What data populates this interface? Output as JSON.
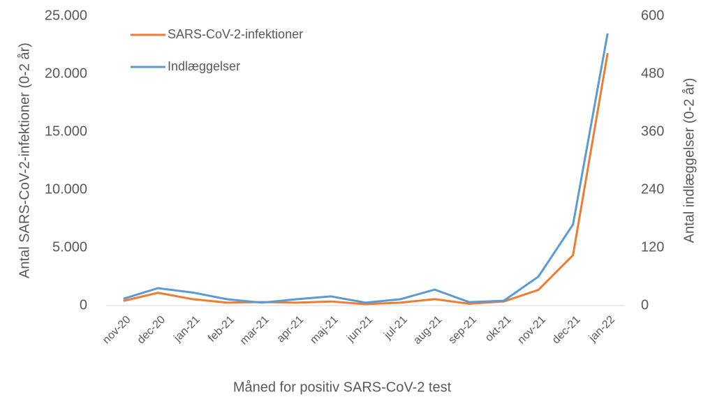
{
  "chart_data": {
    "type": "line",
    "x_label": "Måned for positiv SARS-CoV-2 test",
    "y_label": "Antal SARS-CoV-2-infektioner (0-2 år)",
    "y2_label": "Antal indlæggelser (0-2 år)",
    "categories": [
      "nov-20",
      "dec-20",
      "jan-21",
      "feb-21",
      "mar-21",
      "apr-21",
      "maj-21",
      "jun-21",
      "jul-21",
      "aug-21",
      "sep-21",
      "okt-21",
      "nov-21",
      "dec-21",
      "jan-22"
    ],
    "series": [
      {
        "name": "SARS-CoV-2-infektioner",
        "color": "#ed7d31",
        "values": [
          400,
          1100,
          550,
          250,
          300,
          250,
          350,
          120,
          250,
          550,
          150,
          350,
          1350,
          4350,
          21800
        ]
      },
      {
        "name": "Indlæggelser",
        "color": "#5b9bd5",
        "axis": "y2",
        "values": [
          14,
          36,
          27,
          13,
          6,
          13,
          19,
          6,
          13,
          33,
          7,
          10,
          60,
          168,
          564
        ]
      }
    ],
    "ylim": [
      0,
      25000
    ],
    "yticks": [
      0,
      {
        "value": 5000,
        "label": "5.000"
      },
      {
        "value": 10000,
        "label": "10.000"
      },
      {
        "value": 15000,
        "label": "15.000"
      },
      {
        "value": 20000,
        "label": "20.000"
      },
      {
        "value": 25000,
        "label": "25.000"
      }
    ],
    "y2lim": [
      0,
      600
    ],
    "y2ticks": [
      0,
      120,
      240,
      360,
      480,
      600
    ],
    "grid": false,
    "legend": "upper-left"
  }
}
